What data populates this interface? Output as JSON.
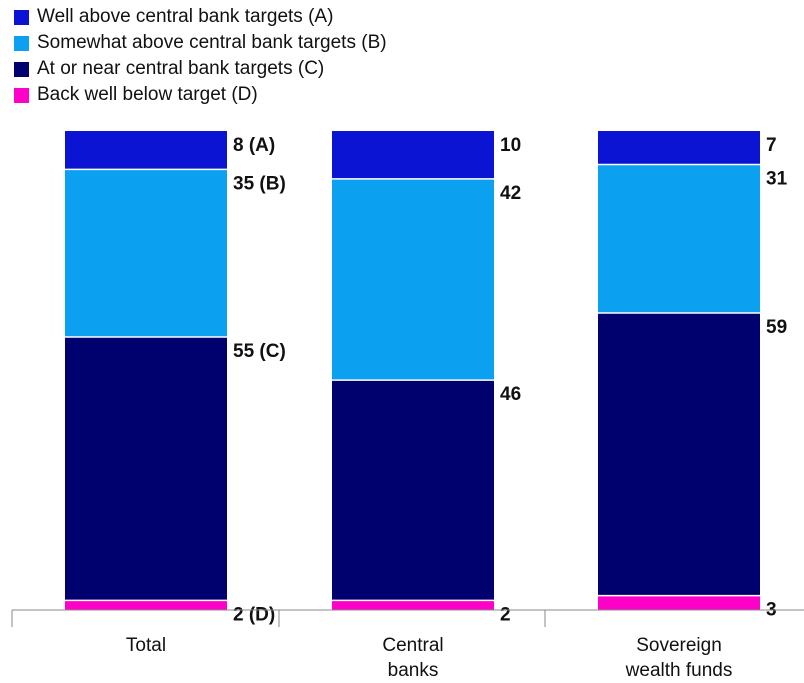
{
  "chart_data": {
    "type": "bar",
    "stacked": true,
    "percent_stacked": true,
    "categories": [
      [
        "Total"
      ],
      [
        "Central",
        "banks"
      ],
      [
        "Sovereign",
        "wealth funds"
      ]
    ],
    "series": [
      {
        "name": "Back well below target (D)",
        "color": "#ff00c8",
        "values": [
          2,
          2,
          3
        ],
        "labels": [
          "2 (D)",
          "2",
          "3"
        ]
      },
      {
        "name": "At or near central bank targets (C)",
        "color": "#00006e",
        "values": [
          55,
          46,
          59
        ],
        "labels": [
          "55 (C)",
          "46",
          "59"
        ]
      },
      {
        "name": "Somewhat above central bank targets (B)",
        "color": "#0ca0f0",
        "values": [
          35,
          42,
          31
        ],
        "labels": [
          "35 (B)",
          "42",
          "31"
        ]
      },
      {
        "name": "Well above central bank targets (A)",
        "color": "#0a14d2",
        "values": [
          8,
          10,
          7
        ],
        "labels": [
          "8 (A)",
          "10",
          "7"
        ]
      }
    ],
    "legend_order": [
      3,
      2,
      1,
      0
    ],
    "legend_position": "top-left",
    "ylim": [
      0,
      100
    ],
    "grid": false
  }
}
